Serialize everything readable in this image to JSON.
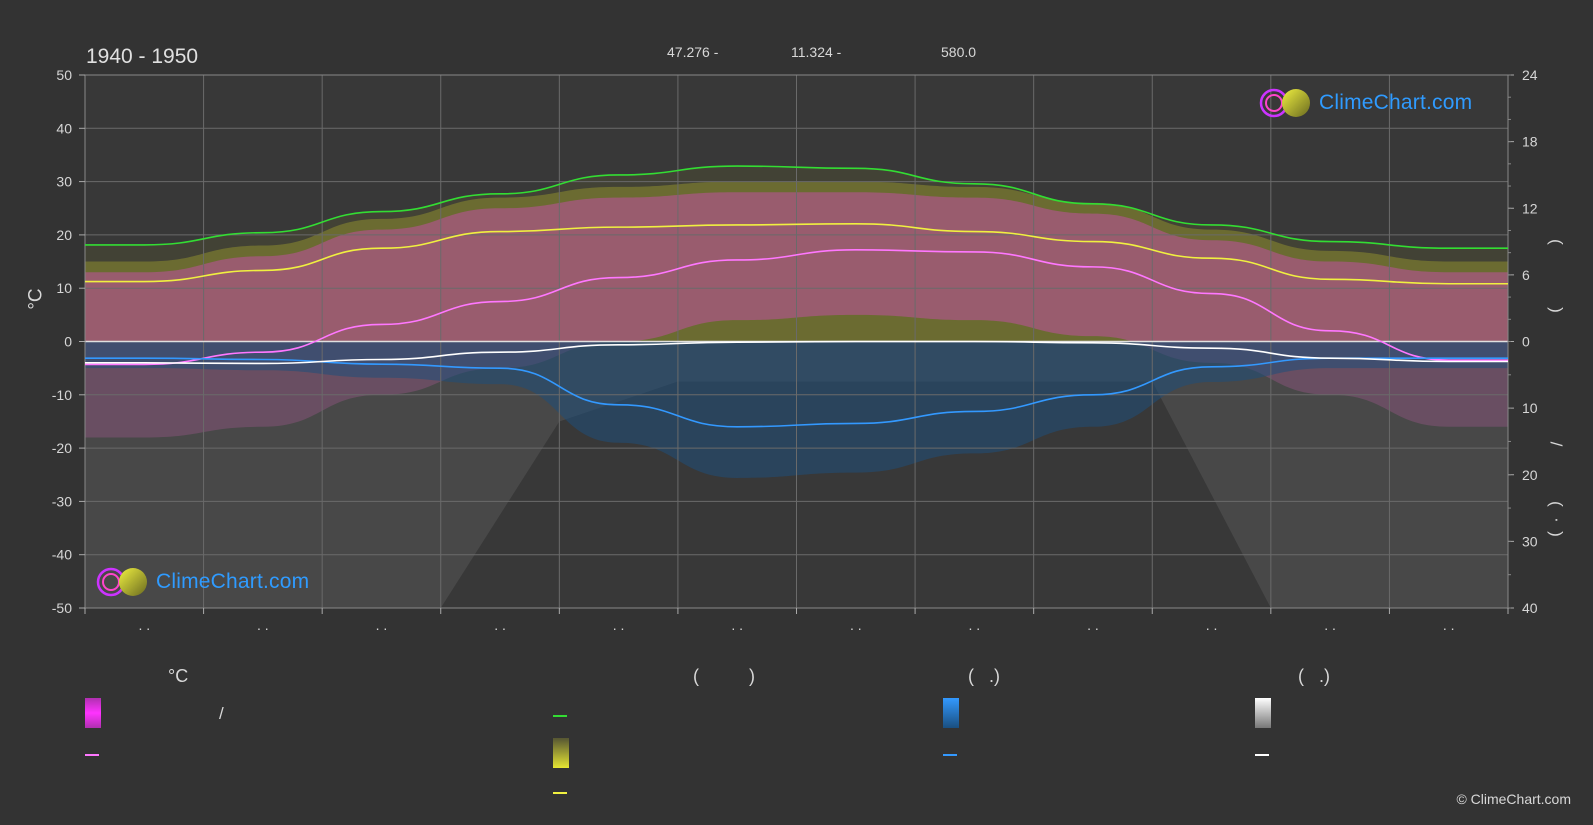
{
  "header": {
    "period": "1940 - 1950",
    "latitude": "47.276 -",
    "longitude": "11.324 -",
    "elevation": "580.0"
  },
  "axis": {
    "left_unit": "°C",
    "right_marks": [
      "(",
      ")",
      "(",
      ")",
      "/",
      "(",
      "·",
      ")"
    ]
  },
  "legend": {
    "headers": {
      "temperature": "°C",
      "sun": "(          )",
      "rain": "(   .)",
      "snow": "(   .)"
    },
    "range_separator": "/",
    "colors": {
      "temp_range": "#e040e0",
      "temp_mean": "#ff77ff",
      "daylight": "#33dd33",
      "sunshine": "#e6e633",
      "sunshine_line": "#f0f040",
      "rain": "#2a7fd4",
      "rain_line": "#3399ff",
      "snow": "#dddddd",
      "snow_line": "#ffffff"
    }
  },
  "logo": {
    "text": "ClimeChart.com"
  },
  "copyright": "© ClimeChart.com",
  "chart_data": {
    "type": "line",
    "months": [
      "Jan",
      "Feb",
      "Mar",
      "Apr",
      "May",
      "Jun",
      "Jul",
      "Aug",
      "Sep",
      "Oct",
      "Nov",
      "Dec"
    ],
    "month_tick_labels": [
      ". .",
      ". .",
      ". .",
      ". .",
      ". .",
      ". .",
      ". .",
      ". .",
      ". .",
      ". .",
      ". .",
      ". ."
    ],
    "left_axis": {
      "min": -50,
      "max": 50,
      "ticks": [
        50,
        40,
        30,
        20,
        10,
        0,
        -10,
        -20,
        -30,
        -40,
        -50
      ]
    },
    "right_axis_top": {
      "min": 0,
      "max": 24,
      "ticks": [
        24,
        18,
        12,
        6,
        0
      ]
    },
    "right_axis_bottom": {
      "min": 0,
      "max": 40,
      "ticks": [
        10,
        20,
        30,
        40
      ]
    },
    "grid": true,
    "series": [
      {
        "key": "daylight",
        "axis": "hours",
        "values": [
          8.7,
          9.8,
          11.7,
          13.3,
          15.0,
          15.8,
          15.6,
          14.2,
          12.4,
          10.5,
          9.0,
          8.4
        ]
      },
      {
        "key": "sunshine",
        "axis": "hours",
        "values": [
          5.4,
          6.4,
          8.4,
          9.9,
          10.3,
          10.5,
          10.6,
          9.9,
          9.0,
          7.5,
          5.6,
          5.2
        ]
      },
      {
        "key": "temp_mean",
        "axis": "celsius",
        "values": [
          -4.3,
          -2.0,
          3.2,
          7.5,
          12.0,
          15.3,
          17.2,
          16.8,
          14.0,
          9.0,
          2.0,
          -3.5
        ]
      },
      {
        "key": "rain",
        "axis": "mm",
        "values": [
          2.5,
          2.7,
          3.4,
          4.0,
          9.5,
          12.8,
          12.3,
          10.5,
          8.0,
          3.8,
          2.5,
          2.5
        ]
      },
      {
        "key": "snow",
        "axis": "mm",
        "values": [
          3.2,
          3.3,
          2.7,
          1.6,
          0.5,
          0.1,
          0.0,
          0.0,
          0.2,
          1.0,
          2.5,
          3.0
        ]
      }
    ],
    "temp_band": {
      "max": [
        15,
        18,
        23,
        27,
        29,
        30,
        30,
        29,
        26,
        21,
        17,
        15
      ],
      "min": [
        -18,
        -16,
        -10,
        -5,
        0,
        4,
        5,
        4,
        1,
        -4,
        -10,
        -16
      ]
    }
  }
}
